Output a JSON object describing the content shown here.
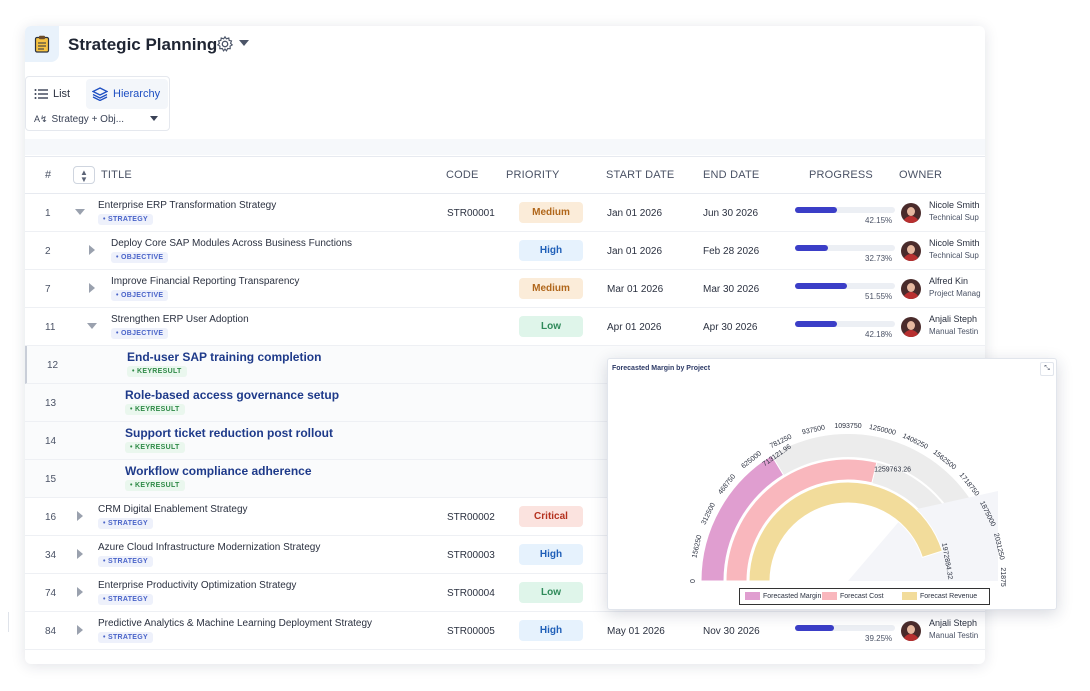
{
  "header": {
    "title": "Strategic Planning"
  },
  "views": {
    "list_label": "List",
    "hierarchy_label": "Hierarchy",
    "filter_value": "Strategy + Obj..."
  },
  "columns": {
    "num": "#",
    "title": "TITLE",
    "code": "CODE",
    "priority": "PRIORITY",
    "start": "START DATE",
    "end": "END DATE",
    "progress": "PROGRESS",
    "owner": "OWNER"
  },
  "rows": [
    {
      "num": "1",
      "title": "Enterprise ERP Transformation Strategy",
      "tag": "STRATEGY",
      "code": "STR00001",
      "priority": "Medium",
      "start": "Jan 01 2026",
      "end": "Jun 30 2026",
      "progress": "42.15%",
      "progress_value": 42.15,
      "owner": "Nicole Smith",
      "role": "Technical Sup"
    },
    {
      "num": "2",
      "title": "Deploy Core SAP Modules Across Business Functions",
      "tag": "OBJECTIVE",
      "code": "",
      "priority": "High",
      "start": "Jan 01 2026",
      "end": "Feb 28 2026",
      "progress": "32.73%",
      "progress_value": 32.73,
      "owner": "Nicole Smith",
      "role": "Technical Sup"
    },
    {
      "num": "7",
      "title": "Improve Financial Reporting Transparency",
      "tag": "OBJECTIVE",
      "code": "",
      "priority": "Medium",
      "start": "Mar 01 2026",
      "end": "Mar 30 2026",
      "progress": "51.55%",
      "progress_value": 51.55,
      "owner": "Alfred Kin",
      "role": "Project Manag"
    },
    {
      "num": "11",
      "title": "Strengthen ERP User Adoption",
      "tag": "OBJECTIVE",
      "code": "",
      "priority": "Low",
      "start": "Apr 01 2026",
      "end": "Apr 30 2026",
      "progress": "42.18%",
      "progress_value": 42.18,
      "owner": "Anjali Steph",
      "role": "Manual Testin"
    },
    {
      "num": "12",
      "title": "End-user SAP training completion",
      "tag": "KEYRESULT"
    },
    {
      "num": "13",
      "title": "Role-based access governance setup",
      "tag": "KEYRESULT"
    },
    {
      "num": "14",
      "title": "Support ticket reduction post rollout",
      "tag": "KEYRESULT"
    },
    {
      "num": "15",
      "title": "Workflow compliance adherence",
      "tag": "KEYRESULT"
    },
    {
      "num": "16",
      "title": "CRM Digital Enablement Strategy",
      "tag": "STRATEGY",
      "code": "STR00002",
      "priority": "Critical"
    },
    {
      "num": "34",
      "title": "Azure Cloud Infrastructure Modernization Strategy",
      "tag": "STRATEGY",
      "code": "STR00003",
      "priority": "High"
    },
    {
      "num": "74",
      "title": "Enterprise Productivity Optimization Strategy",
      "tag": "STRATEGY",
      "code": "STR00004",
      "priority": "Low"
    },
    {
      "num": "84",
      "title": "Predictive Analytics & Machine Learning Deployment Strategy",
      "tag": "STRATEGY",
      "code": "STR00005",
      "priority": "High",
      "start": "May 01 2026",
      "end": "Nov 30 2026",
      "progress": "39.25%",
      "progress_value": 39.25,
      "owner": "Anjali Steph",
      "role": "Manual Testin"
    }
  ],
  "priority_colors": {
    "Medium": {
      "bg": "#fbecd9",
      "fg": "#b0661a"
    },
    "High": {
      "bg": "#e6f2fd",
      "fg": "#1f5fb8"
    },
    "Low": {
      "bg": "#dff5ea",
      "fg": "#2f8a5a"
    },
    "Critical": {
      "bg": "#fbe3df",
      "fg": "#b5321f"
    }
  },
  "chart_data": {
    "type": "radial-bar",
    "title": "Forecasted Margin by Project",
    "axis_ticks": [
      "0",
      "156250",
      "312500",
      "468750",
      "625000",
      "781250",
      "937500",
      "1093750",
      "1250000",
      "1406250",
      "1562500",
      "1718750",
      "1875000",
      "2031250",
      "2187500"
    ],
    "axis_max": 2187500,
    "series": [
      {
        "name": "Forecasted Margin",
        "value": 713121.96,
        "label": "713121.96",
        "color": "#e09ed0"
      },
      {
        "name": "Forecast Cost",
        "value": 1259763.26,
        "label": "1259763.26",
        "color": "#f9b7bd"
      },
      {
        "name": "Forecast Revenue",
        "value": 1972884.32,
        "label": "1972884.32",
        "color": "#f2dc9b"
      }
    ]
  }
}
